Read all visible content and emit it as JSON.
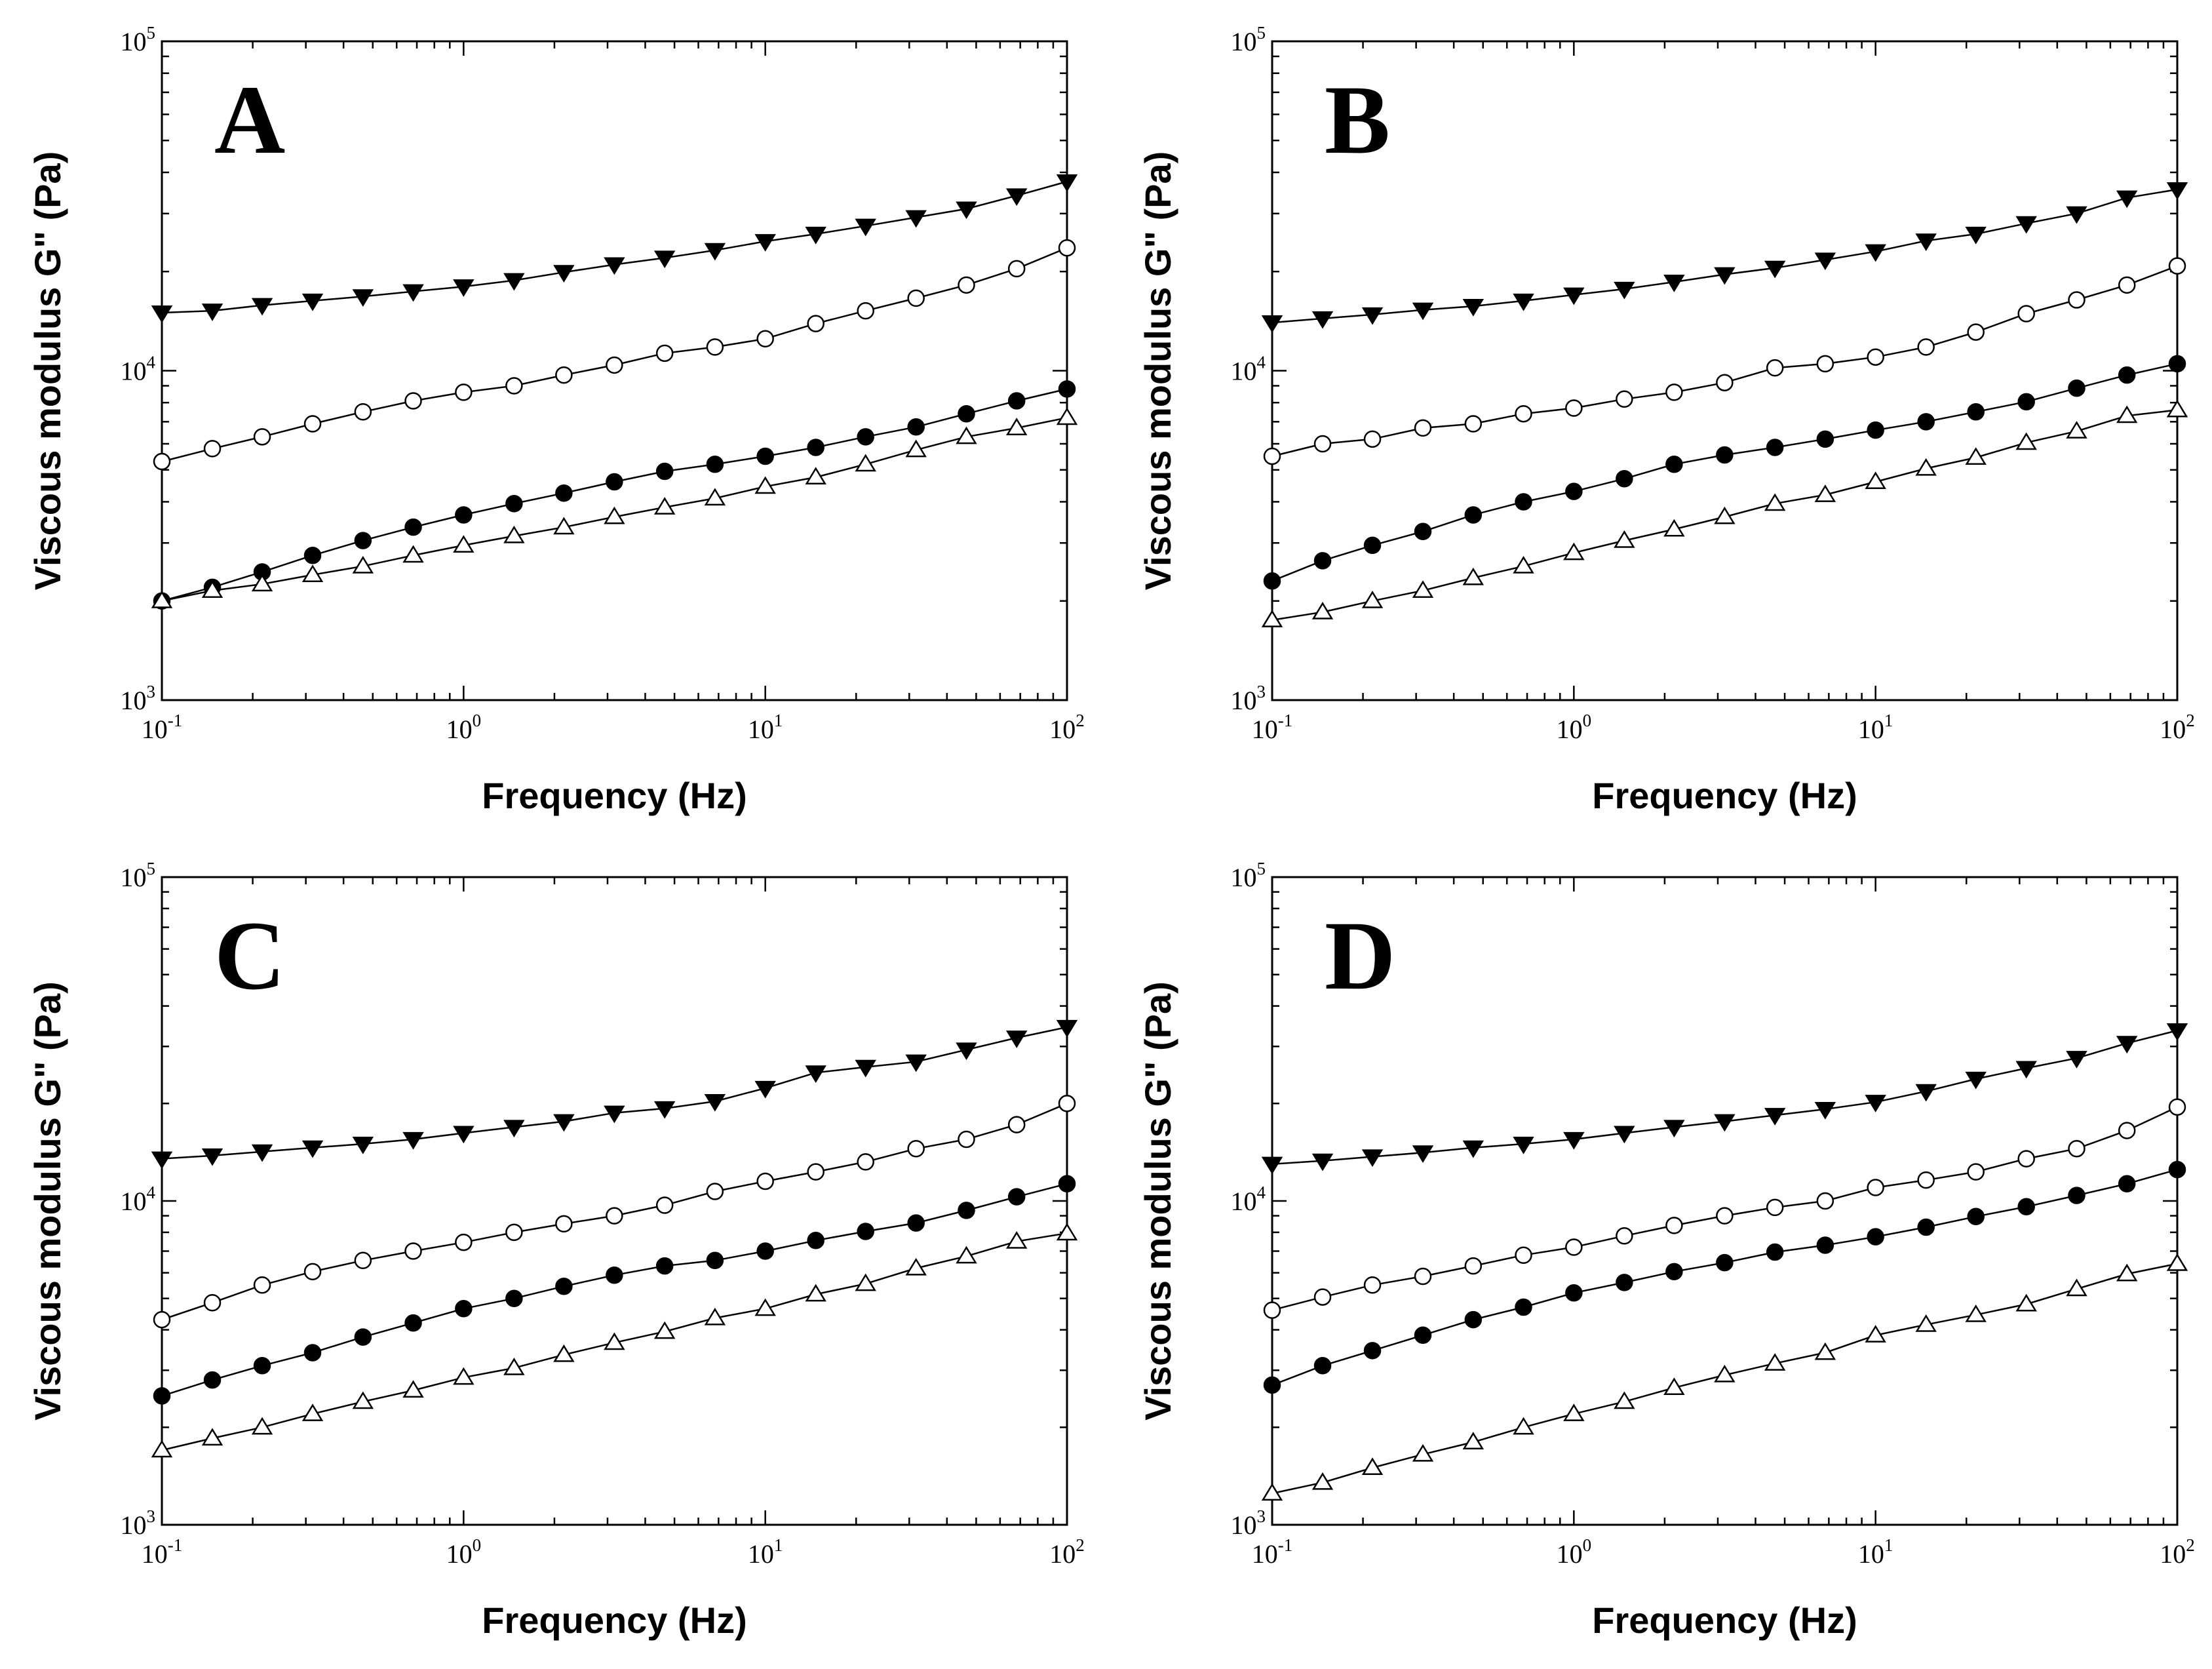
{
  "chart_data": [
    {
      "panel": "A",
      "type": "line",
      "xscale": "log",
      "yscale": "log",
      "xlabel": "Frequency (Hz)",
      "ylabel": "Viscous modulus G\" (Pa)",
      "xlim": [
        0.1,
        100
      ],
      "ylim": [
        1000,
        100000
      ],
      "xticks": [
        {
          "base": "10",
          "exp": "-1"
        },
        {
          "base": "10",
          "exp": "0"
        },
        {
          "base": "10",
          "exp": "1"
        },
        {
          "base": "10",
          "exp": "2"
        }
      ],
      "yticks": [
        {
          "base": "10",
          "exp": "3"
        },
        {
          "base": "10",
          "exp": "4"
        },
        {
          "base": "10",
          "exp": "5"
        }
      ],
      "x": [
        0.1,
        0.147,
        0.215,
        0.316,
        0.464,
        0.681,
        1.0,
        1.47,
        2.15,
        3.16,
        4.64,
        6.81,
        10.0,
        14.7,
        21.5,
        31.6,
        46.4,
        68.1,
        100
      ],
      "series": [
        {
          "name": "filled-triangle-down",
          "marker": "triangle-down",
          "fill": "filled",
          "values": [
            15000,
            15200,
            15800,
            16300,
            16800,
            17400,
            18000,
            18800,
            19900,
            21000,
            22000,
            23200,
            24700,
            26000,
            27500,
            29200,
            31000,
            34000,
            37500
          ]
        },
        {
          "name": "open-circle",
          "marker": "circle",
          "fill": "open",
          "values": [
            5300,
            5800,
            6300,
            6900,
            7500,
            8100,
            8600,
            9000,
            9700,
            10400,
            11300,
            11800,
            12500,
            13900,
            15200,
            16600,
            18200,
            20400,
            23600
          ]
        },
        {
          "name": "filled-circle",
          "marker": "circle",
          "fill": "filled",
          "values": [
            2000,
            2200,
            2450,
            2750,
            3050,
            3350,
            3650,
            3950,
            4250,
            4600,
            4950,
            5200,
            5500,
            5850,
            6300,
            6750,
            7400,
            8100,
            8800
          ]
        },
        {
          "name": "open-triangle-up",
          "marker": "triangle-up",
          "fill": "open",
          "values": [
            2000,
            2150,
            2250,
            2400,
            2550,
            2750,
            2950,
            3150,
            3350,
            3600,
            3850,
            4100,
            4450,
            4750,
            5200,
            5750,
            6300,
            6700,
            7200
          ]
        }
      ]
    },
    {
      "panel": "B",
      "type": "line",
      "xscale": "log",
      "yscale": "log",
      "xlabel": "Frequency (Hz)",
      "ylabel": "Viscous modulus G\" (Pa)",
      "xlim": [
        0.1,
        100
      ],
      "ylim": [
        1000,
        100000
      ],
      "xticks": [
        {
          "base": "10",
          "exp": "-1"
        },
        {
          "base": "10",
          "exp": "0"
        },
        {
          "base": "10",
          "exp": "1"
        },
        {
          "base": "10",
          "exp": "2"
        }
      ],
      "yticks": [
        {
          "base": "10",
          "exp": "3"
        },
        {
          "base": "10",
          "exp": "4"
        },
        {
          "base": "10",
          "exp": "5"
        }
      ],
      "x": [
        0.1,
        0.147,
        0.215,
        0.316,
        0.464,
        0.681,
        1.0,
        1.47,
        2.15,
        3.16,
        4.64,
        6.81,
        10.0,
        14.7,
        21.5,
        31.6,
        46.4,
        68.1,
        100
      ],
      "series": [
        {
          "name": "filled-triangle-down",
          "marker": "triangle-down",
          "fill": "filled",
          "values": [
            14000,
            14400,
            14800,
            15300,
            15700,
            16300,
            17000,
            17700,
            18600,
            19600,
            20500,
            21700,
            23000,
            24800,
            26000,
            28000,
            30000,
            33500,
            35500
          ]
        },
        {
          "name": "open-circle",
          "marker": "circle",
          "fill": "open",
          "values": [
            5500,
            6000,
            6200,
            6700,
            6900,
            7400,
            7700,
            8200,
            8600,
            9200,
            10200,
            10500,
            11000,
            11800,
            13100,
            14900,
            16400,
            18200,
            20800
          ]
        },
        {
          "name": "filled-circle",
          "marker": "circle",
          "fill": "filled",
          "values": [
            2300,
            2650,
            2950,
            3250,
            3650,
            4000,
            4300,
            4700,
            5200,
            5550,
            5850,
            6200,
            6600,
            7000,
            7500,
            8050,
            8850,
            9700,
            10500
          ]
        },
        {
          "name": "open-triangle-up",
          "marker": "triangle-up",
          "fill": "open",
          "values": [
            1750,
            1850,
            2000,
            2150,
            2350,
            2550,
            2800,
            3050,
            3300,
            3600,
            3950,
            4200,
            4600,
            5050,
            5450,
            6050,
            6550,
            7300,
            7600
          ]
        }
      ]
    },
    {
      "panel": "C",
      "type": "line",
      "xscale": "log",
      "yscale": "log",
      "xlabel": "Frequency (Hz)",
      "ylabel": "Viscous modulus G\" (Pa)",
      "xlim": [
        0.1,
        100
      ],
      "ylim": [
        1000,
        100000
      ],
      "xticks": [
        {
          "base": "10",
          "exp": "-1"
        },
        {
          "base": "10",
          "exp": "0"
        },
        {
          "base": "10",
          "exp": "1"
        },
        {
          "base": "10",
          "exp": "2"
        }
      ],
      "yticks": [
        {
          "base": "10",
          "exp": "3"
        },
        {
          "base": "10",
          "exp": "4"
        },
        {
          "base": "10",
          "exp": "5"
        }
      ],
      "x": [
        0.1,
        0.147,
        0.215,
        0.316,
        0.464,
        0.681,
        1.0,
        1.47,
        2.15,
        3.16,
        4.64,
        6.81,
        10.0,
        14.7,
        21.5,
        31.6,
        46.4,
        68.1,
        100
      ],
      "series": [
        {
          "name": "filled-triangle-down",
          "marker": "triangle-down",
          "fill": "filled",
          "values": [
            13500,
            13800,
            14200,
            14600,
            15000,
            15500,
            16200,
            16900,
            17600,
            18700,
            19300,
            20300,
            22300,
            24900,
            25900,
            26900,
            29300,
            31900,
            34400
          ]
        },
        {
          "name": "open-circle",
          "marker": "circle",
          "fill": "open",
          "values": [
            4300,
            4850,
            5500,
            6050,
            6550,
            7000,
            7450,
            8000,
            8500,
            9000,
            9700,
            10700,
            11500,
            12300,
            13200,
            14500,
            15500,
            17200,
            20000
          ]
        },
        {
          "name": "filled-circle",
          "marker": "circle",
          "fill": "filled",
          "values": [
            2500,
            2800,
            3100,
            3400,
            3800,
            4200,
            4650,
            5000,
            5450,
            5900,
            6300,
            6550,
            7000,
            7550,
            8050,
            8550,
            9350,
            10300,
            11300
          ]
        },
        {
          "name": "open-triangle-up",
          "marker": "triangle-up",
          "fill": "open",
          "values": [
            1700,
            1850,
            2000,
            2200,
            2400,
            2600,
            2850,
            3050,
            3350,
            3650,
            3950,
            4350,
            4650,
            5150,
            5550,
            6200,
            6750,
            7500,
            7950
          ]
        }
      ]
    },
    {
      "panel": "D",
      "type": "line",
      "xscale": "log",
      "yscale": "log",
      "xlabel": "Frequency (Hz)",
      "ylabel": "Viscous modulus G\" (Pa)",
      "xlim": [
        0.1,
        100
      ],
      "ylim": [
        1000,
        100000
      ],
      "xticks": [
        {
          "base": "10",
          "exp": "-1"
        },
        {
          "base": "10",
          "exp": "0"
        },
        {
          "base": "10",
          "exp": "1"
        },
        {
          "base": "10",
          "exp": "2"
        }
      ],
      "yticks": [
        {
          "base": "10",
          "exp": "3"
        },
        {
          "base": "10",
          "exp": "4"
        },
        {
          "base": "10",
          "exp": "5"
        }
      ],
      "x": [
        0.1,
        0.147,
        0.215,
        0.316,
        0.464,
        0.681,
        1.0,
        1.47,
        2.15,
        3.16,
        4.64,
        6.81,
        10.0,
        14.7,
        21.5,
        31.6,
        46.4,
        68.1,
        100
      ],
      "series": [
        {
          "name": "filled-triangle-down",
          "marker": "triangle-down",
          "fill": "filled",
          "values": [
            13000,
            13300,
            13700,
            14100,
            14600,
            15000,
            15500,
            16200,
            16900,
            17600,
            18400,
            19200,
            20200,
            21800,
            23800,
            25700,
            27600,
            30700,
            33600
          ]
        },
        {
          "name": "open-circle",
          "marker": "circle",
          "fill": "open",
          "values": [
            4600,
            5050,
            5500,
            5850,
            6300,
            6800,
            7200,
            7800,
            8400,
            9000,
            9550,
            10000,
            11000,
            11600,
            12300,
            13500,
            14500,
            16500,
            19500
          ]
        },
        {
          "name": "filled-circle",
          "marker": "circle",
          "fill": "filled",
          "values": [
            2700,
            3100,
            3450,
            3850,
            4300,
            4700,
            5200,
            5600,
            6050,
            6450,
            6950,
            7300,
            7750,
            8300,
            8950,
            9600,
            10400,
            11300,
            12500
          ]
        },
        {
          "name": "open-triangle-up",
          "marker": "triangle-up",
          "fill": "open",
          "values": [
            1250,
            1350,
            1500,
            1650,
            1800,
            2000,
            2200,
            2400,
            2650,
            2900,
            3150,
            3400,
            3850,
            4150,
            4450,
            4800,
            5350,
            5950,
            6400
          ]
        }
      ]
    }
  ]
}
